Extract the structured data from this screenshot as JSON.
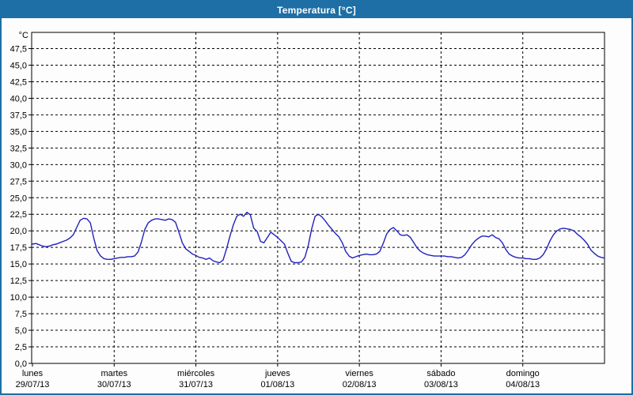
{
  "window": {
    "title": "Temperatura [°C]",
    "title_bar_color": "#1d6fa5",
    "border_color": "#1d6fa5",
    "title_text_color": "#ffffff"
  },
  "chart_data": {
    "type": "line",
    "title": "Temperatura [°C]",
    "grid": "dashed-black",
    "legend": "none",
    "plot_background": "#fdfdfd",
    "line_color": "#2121c0",
    "axis_color": "#000000",
    "y_axis": {
      "unit": "°C",
      "min": 0,
      "max": 47.5,
      "step": 2.5,
      "decimal_style": "comma",
      "tick_labels": [
        "0,0",
        "2,5",
        "5,0",
        "7,5",
        "10,0",
        "12,5",
        "15,0",
        "17,5",
        "20,0",
        "22,5",
        "25,0",
        "27,5",
        "30,0",
        "32,5",
        "35,0",
        "37,5",
        "40,0",
        "42,5",
        "45,0",
        "47,5"
      ]
    },
    "x_axis": {
      "hours_per_day": 24,
      "days": [
        {
          "name": "lunes",
          "date": "29/07/13"
        },
        {
          "name": "martes",
          "date": "30/07/13"
        },
        {
          "name": "miércoles",
          "date": "31/07/13"
        },
        {
          "name": "jueves",
          "date": "01/08/13"
        },
        {
          "name": "viernes",
          "date": "02/08/13"
        },
        {
          "name": "sábado",
          "date": "03/08/13"
        },
        {
          "name": "domingo",
          "date": "04/08/13"
        }
      ]
    },
    "series": [
      {
        "name": "Temperatura",
        "unit": "°C",
        "sampling": "hourly",
        "values": [
          18.0,
          18.1,
          17.9,
          17.7,
          17.6,
          17.7,
          17.9,
          18.0,
          18.2,
          18.4,
          18.6,
          18.9,
          19.4,
          20.5,
          21.6,
          21.9,
          21.8,
          21.2,
          18.9,
          17.0,
          16.2,
          15.8,
          15.7,
          15.7,
          15.8,
          15.9,
          16.0,
          16.0,
          16.1,
          16.1,
          16.2,
          16.8,
          18.3,
          20.2,
          21.2,
          21.6,
          21.8,
          21.8,
          21.7,
          21.6,
          21.8,
          21.7,
          21.3,
          19.8,
          18.2,
          17.3,
          16.9,
          16.5,
          16.3,
          16.0,
          15.9,
          15.7,
          15.9,
          15.5,
          15.3,
          15.2,
          15.6,
          17.3,
          19.2,
          20.9,
          22.2,
          22.5,
          22.2,
          22.8,
          22.4,
          20.4,
          19.9,
          18.4,
          18.2,
          19.0,
          19.8,
          19.4,
          19.0,
          18.5,
          18.0,
          16.6,
          15.4,
          15.2,
          15.2,
          15.3,
          16.0,
          17.8,
          20.3,
          22.2,
          22.5,
          22.1,
          21.5,
          20.8,
          20.2,
          19.6,
          19.1,
          18.2,
          16.9,
          16.2,
          15.9,
          16.1,
          16.3,
          16.4,
          16.5,
          16.4,
          16.4,
          16.5,
          16.9,
          18.1,
          19.5,
          20.2,
          20.5,
          20.0,
          19.4,
          19.3,
          19.4,
          19.0,
          18.2,
          17.4,
          16.9,
          16.6,
          16.4,
          16.3,
          16.2,
          16.2,
          16.2,
          16.2,
          16.1,
          16.1,
          16.0,
          15.9,
          16.0,
          16.4,
          17.1,
          17.9,
          18.5,
          18.9,
          19.2,
          19.2,
          19.1,
          19.4,
          19.0,
          18.8,
          18.2,
          17.2,
          16.5,
          16.2,
          16.0,
          15.9,
          15.9,
          15.8,
          15.8,
          15.7,
          15.7,
          15.9,
          16.4,
          17.3,
          18.5,
          19.4,
          20.0,
          20.3,
          20.4,
          20.3,
          20.2,
          20.0,
          19.5,
          19.1,
          18.6,
          18.0,
          17.1,
          16.6,
          16.2,
          16.0,
          15.9
        ]
      }
    ]
  }
}
